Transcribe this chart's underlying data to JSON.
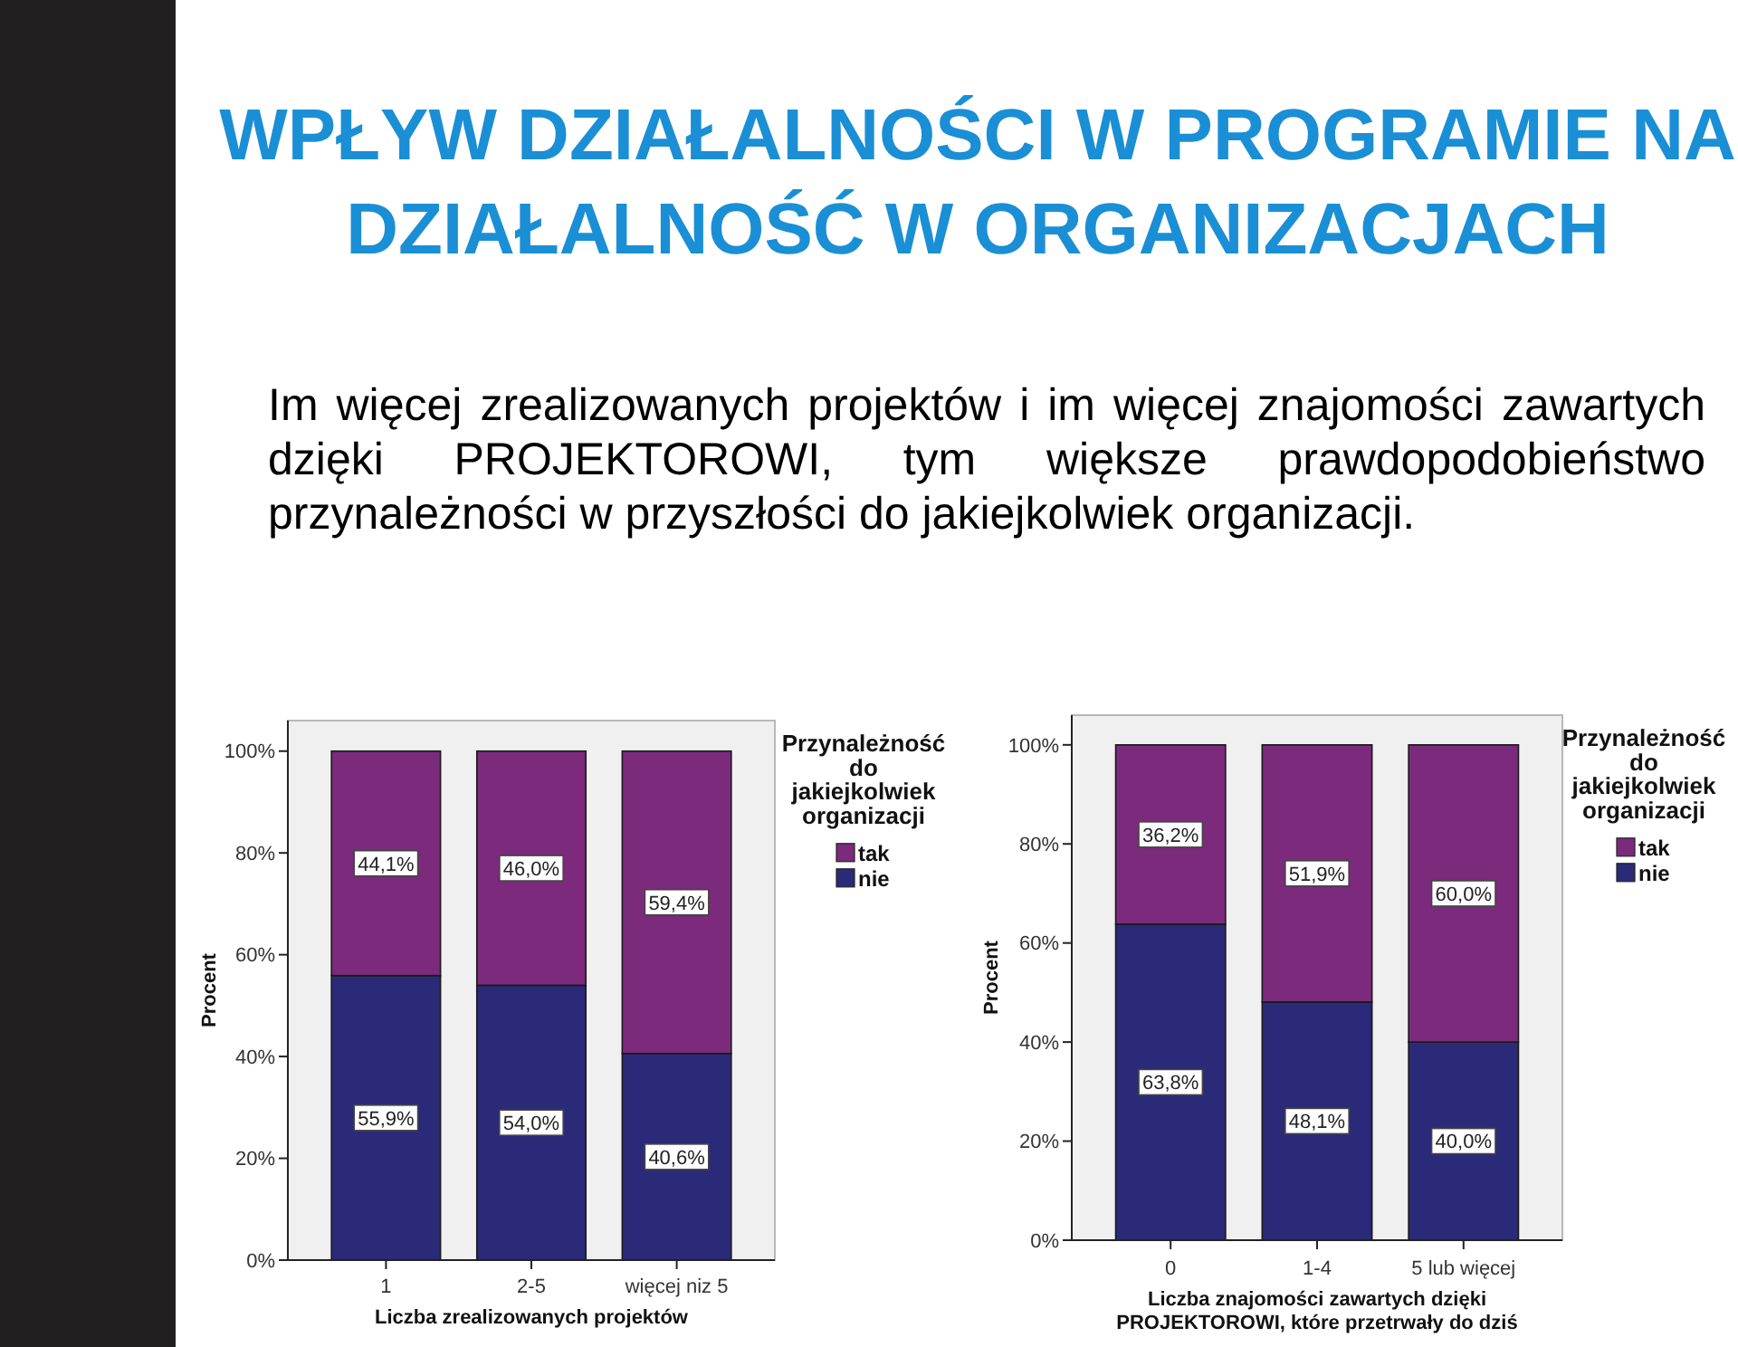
{
  "chart_data": [
    {
      "type": "other",
      "title": "WPŁYW DZIAŁALNOŚCI W PROGRAMIE NA DZIAŁALNOŚĆ W ORGANIZACJACH",
      "subtitle": "Im więcej zrealizowanych projektów i im więcej znajomości zawartych dzięki PROJEKTOROWI, tym większe prawdopodobieństwo przynależności w przyszłości do jakiejkolwiek organizacji."
    },
    {
      "type": "bar",
      "stacked": true,
      "categories": [
        "1",
        "2-5",
        "więcej niz 5"
      ],
      "series": [
        {
          "name": "nie",
          "color": "#2b2a78",
          "values": [
            55.9,
            54.0,
            40.6
          ],
          "value_labels": [
            "55,9%",
            "54,0%",
            "40,6%"
          ]
        },
        {
          "name": "tak",
          "color": "#7b2a7c",
          "values": [
            44.1,
            46.0,
            59.4
          ],
          "value_labels": [
            "44,1%",
            "46,0%",
            "59,4%"
          ]
        }
      ],
      "xlabel": "Liczba zrealizowanych projektów",
      "ylabel": "Procent",
      "legend_title": "Przynależność do jakiejkolwiek organizacji",
      "legend": "right",
      "ylim": [
        0,
        106
      ],
      "yticks": [
        {
          "value": 0,
          "label": "0%"
        },
        {
          "value": 20,
          "label": "20%"
        },
        {
          "value": 40,
          "label": "40%"
        },
        {
          "value": 60,
          "label": "60%"
        },
        {
          "value": 80,
          "label": "80%"
        },
        {
          "value": 100,
          "label": "100%"
        }
      ]
    },
    {
      "type": "bar",
      "stacked": true,
      "categories": [
        "0",
        "1-4",
        "5 lub więcej"
      ],
      "series": [
        {
          "name": "nie",
          "color": "#2b2a78",
          "values": [
            63.8,
            48.1,
            40.0
          ],
          "value_labels": [
            "63,8%",
            "48,1%",
            "40,0%"
          ]
        },
        {
          "name": "tak",
          "color": "#7b2a7c",
          "values": [
            36.2,
            51.9,
            60.0
          ],
          "value_labels": [
            "36,2%",
            "51,9%",
            "60,0%"
          ]
        }
      ],
      "xlabel": "Liczba znajomości zawartych dzięki PROJEKTOROWI, które przetrwały do dziś",
      "ylabel": "Procent",
      "legend_title": "Przynależność do jakiejkolwiek organizacji",
      "legend": "right",
      "ylim": [
        0,
        106
      ],
      "yticks": [
        {
          "value": 0,
          "label": "0%"
        },
        {
          "value": 20,
          "label": "20%"
        },
        {
          "value": 40,
          "label": "40%"
        },
        {
          "value": 60,
          "label": "60%"
        },
        {
          "value": 80,
          "label": "80%"
        },
        {
          "value": 100,
          "label": "100%"
        }
      ]
    }
  ]
}
